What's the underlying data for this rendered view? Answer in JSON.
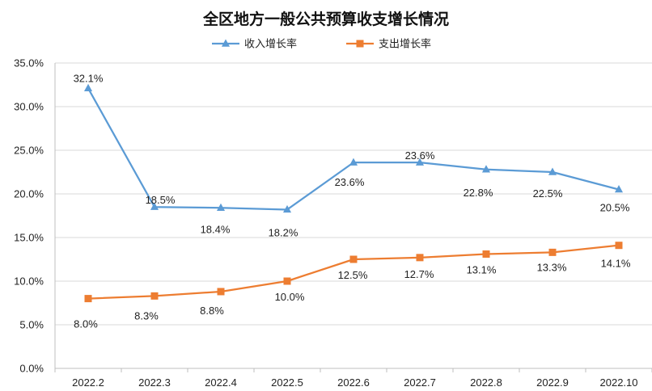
{
  "chart_data": {
    "type": "line",
    "title": "全区地方一般公共预算收支增长情况",
    "categories": [
      "2022.2",
      "2022.3",
      "2022.4",
      "2022.5",
      "2022.6",
      "2022.7",
      "2022.8",
      "2022.9",
      "2022.10"
    ],
    "series": [
      {
        "name": "收入增长率",
        "color": "#5b9bd5",
        "marker": "triangle",
        "values": [
          32.1,
          18.5,
          18.4,
          18.2,
          23.6,
          23.6,
          22.8,
          22.5,
          20.5
        ],
        "labels": [
          "32.1%",
          "18.5%",
          "18.4%",
          "18.2%",
          "23.6%",
          "23.6%",
          "22.8%",
          "22.5%",
          "20.5%"
        ]
      },
      {
        "name": "支出增长率",
        "color": "#ed7d31",
        "marker": "square",
        "values": [
          8.0,
          8.3,
          8.8,
          10.0,
          12.5,
          12.7,
          13.1,
          13.3,
          14.1
        ],
        "labels": [
          "8.0%",
          "8.3%",
          "8.8%",
          "10.0%",
          "12.5%",
          "12.7%",
          "13.1%",
          "13.3%",
          "14.1%"
        ]
      }
    ],
    "ylim": [
      0,
      35
    ],
    "yticks": [
      0,
      5,
      10,
      15,
      20,
      25,
      30,
      35
    ],
    "ytick_labels": [
      "0.0%",
      "5.0%",
      "10.0%",
      "15.0%",
      "20.0%",
      "25.0%",
      "30.0%",
      "35.0%"
    ],
    "xlabel": "",
    "ylabel": "",
    "grid": true,
    "legend_position": "top-center"
  }
}
